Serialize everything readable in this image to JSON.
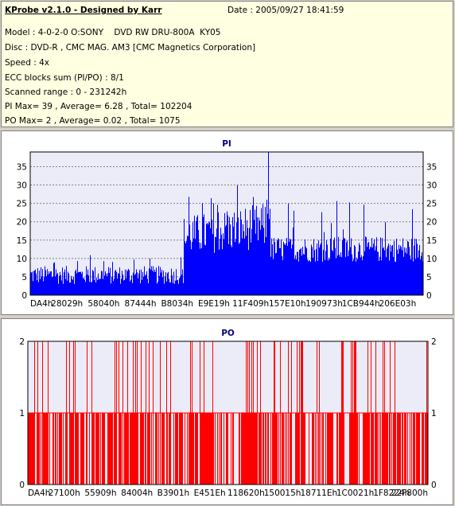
{
  "info": {
    "title": "KProbe v2.1.0 - Designed by Karr",
    "date": "Date : 2005/09/27 18:41:59",
    "lines": [
      "Model : 4-0-2-0 O:SONY    DVD RW DRU-800A  KY05",
      "Disc : DVD-R , CMC MAG. AM3 [CMC Magnetics Corporation]",
      "Speed : 4x",
      "ECC blocks sum (PI/PO) : 8/1",
      "Scanned range : 0 - 231242h",
      "PI Max= 39 , Average= 6.28 , Total= 102204",
      "PO Max= 2 , Average= 0.02 , Total= 1075"
    ]
  },
  "colors": {
    "pi": "#0000ff",
    "po": "#ff0000",
    "title": "#000080",
    "plot_bg": "#ececf8"
  },
  "chart_data": [
    {
      "type": "bar",
      "title": "PI",
      "ylim": [
        0,
        39
      ],
      "yticks": [
        0,
        5,
        10,
        15,
        20,
        25,
        30,
        35
      ],
      "xticklabels": [
        "DA4h",
        "28029h",
        "58040h",
        "87444h",
        "B8034h",
        "E9E19h",
        "11F409h",
        "157E10h",
        "190973h",
        "1CB944h",
        "206E03h"
      ],
      "grid": true,
      "segments": [
        {
          "x_range": [
            0,
            0.39
          ],
          "typical": [
            3,
            8
          ],
          "peaks": [
            10,
            12
          ]
        },
        {
          "x_range": [
            0.39,
            0.6
          ],
          "typical": [
            12,
            24
          ],
          "peaks": [
            26,
            30
          ]
        },
        {
          "x_range": [
            0.6,
            0.61
          ],
          "typical": [
            20,
            28
          ],
          "peaks": [
            39
          ]
        },
        {
          "x_range": [
            0.61,
            1.0
          ],
          "typical": [
            9,
            16
          ],
          "peaks": [
            20,
            26
          ]
        }
      ]
    },
    {
      "type": "bar",
      "title": "PO",
      "ylim": [
        0,
        2
      ],
      "yticks": [
        0,
        1,
        2
      ],
      "xticklabels": [
        "DA4h",
        "27100h",
        "55909h",
        "84004h",
        "B3901h",
        "E451Eh",
        "118620h",
        "150015h",
        "18711Eh",
        "1C0021h",
        "1F8224h",
        "22F800h"
      ],
      "grid": true,
      "values_present": [
        0,
        1,
        2
      ]
    }
  ]
}
